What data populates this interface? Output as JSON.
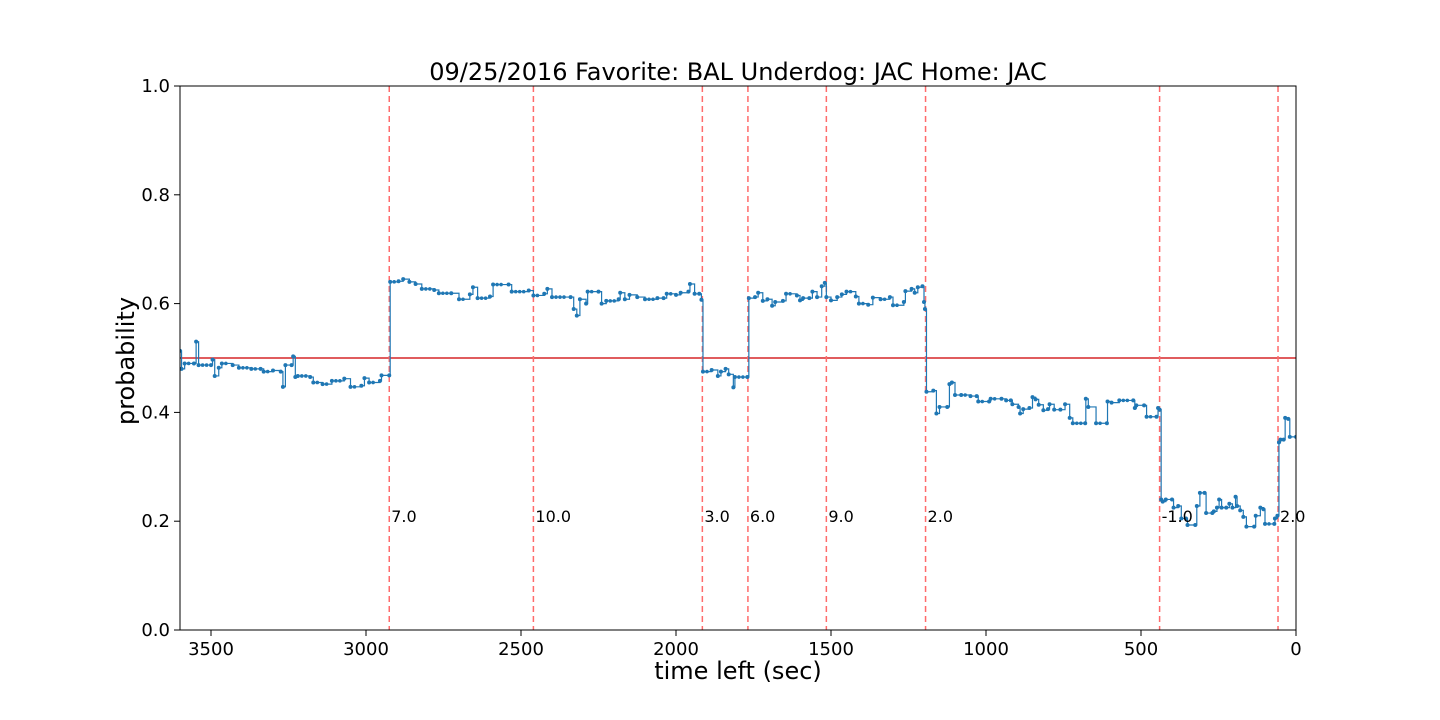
{
  "chart_data": {
    "type": "line",
    "title": "09/25/2016 Favorite: BAL Underdog: JAC Home: JAC",
    "xlabel": "time left (sec)",
    "ylabel": "probability",
    "xlim": [
      3600,
      0
    ],
    "ylim": [
      0.0,
      1.0
    ],
    "x_ticks": [
      3500,
      3000,
      2500,
      2000,
      1500,
      1000,
      500,
      0
    ],
    "y_ticks": [
      0.0,
      0.2,
      0.4,
      0.6,
      0.8,
      1.0
    ],
    "grid": false,
    "reference_line": {
      "y": 0.5,
      "color": "#d62728"
    },
    "series": [
      {
        "color": "#1f77b4",
        "points": [
          [
            3600,
            0.513
          ],
          [
            3595,
            0.48
          ],
          [
            3585,
            0.49
          ],
          [
            3555,
            0.49
          ],
          [
            3548,
            0.53
          ],
          [
            3540,
            0.487
          ],
          [
            3500,
            0.487
          ],
          [
            3495,
            0.497
          ],
          [
            3488,
            0.467
          ],
          [
            3475,
            0.482
          ],
          [
            3465,
            0.49
          ],
          [
            3430,
            0.487
          ],
          [
            3410,
            0.482
          ],
          [
            3370,
            0.48
          ],
          [
            3340,
            0.48
          ],
          [
            3330,
            0.475
          ],
          [
            3300,
            0.477
          ],
          [
            3275,
            0.475
          ],
          [
            3268,
            0.447
          ],
          [
            3260,
            0.487
          ],
          [
            3240,
            0.487
          ],
          [
            3235,
            0.503
          ],
          [
            3228,
            0.465
          ],
          [
            3220,
            0.467
          ],
          [
            3180,
            0.465
          ],
          [
            3170,
            0.455
          ],
          [
            3140,
            0.452
          ],
          [
            3110,
            0.458
          ],
          [
            3070,
            0.462
          ],
          [
            3050,
            0.447
          ],
          [
            3015,
            0.449
          ],
          [
            3005,
            0.463
          ],
          [
            2990,
            0.455
          ],
          [
            2955,
            0.458
          ],
          [
            2950,
            0.468
          ],
          [
            2925,
            0.468
          ],
          [
            2922,
            0.64
          ],
          [
            2895,
            0.641
          ],
          [
            2880,
            0.645
          ],
          [
            2860,
            0.64
          ],
          [
            2840,
            0.636
          ],
          [
            2820,
            0.627
          ],
          [
            2780,
            0.625
          ],
          [
            2765,
            0.619
          ],
          [
            2725,
            0.619
          ],
          [
            2700,
            0.608
          ],
          [
            2665,
            0.617
          ],
          [
            2655,
            0.63
          ],
          [
            2640,
            0.61
          ],
          [
            2600,
            0.613
          ],
          [
            2590,
            0.635
          ],
          [
            2540,
            0.635
          ],
          [
            2530,
            0.622
          ],
          [
            2475,
            0.624
          ],
          [
            2460,
            0.615
          ],
          [
            2425,
            0.618
          ],
          [
            2415,
            0.627
          ],
          [
            2400,
            0.612
          ],
          [
            2340,
            0.612
          ],
          [
            2330,
            0.59
          ],
          [
            2320,
            0.578
          ],
          [
            2310,
            0.608
          ],
          [
            2290,
            0.6
          ],
          [
            2285,
            0.622
          ],
          [
            2250,
            0.622
          ],
          [
            2240,
            0.6
          ],
          [
            2225,
            0.605
          ],
          [
            2185,
            0.608
          ],
          [
            2180,
            0.62
          ],
          [
            2165,
            0.608
          ],
          [
            2150,
            0.616
          ],
          [
            2125,
            0.612
          ],
          [
            2100,
            0.608
          ],
          [
            2060,
            0.61
          ],
          [
            2040,
            0.61
          ],
          [
            2030,
            0.618
          ],
          [
            2000,
            0.616
          ],
          [
            1985,
            0.62
          ],
          [
            1960,
            0.622
          ],
          [
            1955,
            0.636
          ],
          [
            1940,
            0.618
          ],
          [
            1925,
            0.618
          ],
          [
            1918,
            0.607
          ],
          [
            1913,
            0.475
          ],
          [
            1885,
            0.478
          ],
          [
            1865,
            0.467
          ],
          [
            1855,
            0.475
          ],
          [
            1840,
            0.48
          ],
          [
            1830,
            0.47
          ],
          [
            1815,
            0.446
          ],
          [
            1810,
            0.465
          ],
          [
            1770,
            0.465
          ],
          [
            1765,
            0.61
          ],
          [
            1745,
            0.612
          ],
          [
            1735,
            0.62
          ],
          [
            1720,
            0.605
          ],
          [
            1705,
            0.608
          ],
          [
            1690,
            0.596
          ],
          [
            1680,
            0.603
          ],
          [
            1655,
            0.605
          ],
          [
            1645,
            0.618
          ],
          [
            1610,
            0.615
          ],
          [
            1600,
            0.606
          ],
          [
            1590,
            0.61
          ],
          [
            1570,
            0.61
          ],
          [
            1560,
            0.622
          ],
          [
            1545,
            0.612
          ],
          [
            1530,
            0.632
          ],
          [
            1520,
            0.638
          ],
          [
            1515,
            0.612
          ],
          [
            1500,
            0.606
          ],
          [
            1480,
            0.612
          ],
          [
            1465,
            0.617
          ],
          [
            1450,
            0.622
          ],
          [
            1420,
            0.613
          ],
          [
            1410,
            0.6
          ],
          [
            1380,
            0.598
          ],
          [
            1365,
            0.611
          ],
          [
            1340,
            0.608
          ],
          [
            1310,
            0.612
          ],
          [
            1300,
            0.597
          ],
          [
            1265,
            0.603
          ],
          [
            1260,
            0.623
          ],
          [
            1240,
            0.627
          ],
          [
            1230,
            0.62
          ],
          [
            1220,
            0.63
          ],
          [
            1205,
            0.632
          ],
          [
            1200,
            0.603
          ],
          [
            1197,
            0.59
          ],
          [
            1192,
            0.438
          ],
          [
            1170,
            0.44
          ],
          [
            1160,
            0.398
          ],
          [
            1150,
            0.41
          ],
          [
            1125,
            0.41
          ],
          [
            1118,
            0.452
          ],
          [
            1110,
            0.455
          ],
          [
            1100,
            0.432
          ],
          [
            1080,
            0.432
          ],
          [
            1050,
            0.43
          ],
          [
            1030,
            0.43
          ],
          [
            1025,
            0.42
          ],
          [
            990,
            0.42
          ],
          [
            985,
            0.425
          ],
          [
            950,
            0.425
          ],
          [
            935,
            0.422
          ],
          [
            920,
            0.422
          ],
          [
            915,
            0.415
          ],
          [
            895,
            0.41
          ],
          [
            890,
            0.398
          ],
          [
            880,
            0.406
          ],
          [
            860,
            0.408
          ],
          [
            850,
            0.428
          ],
          [
            840,
            0.424
          ],
          [
            830,
            0.414
          ],
          [
            815,
            0.404
          ],
          [
            800,
            0.406
          ],
          [
            795,
            0.415
          ],
          [
            780,
            0.405
          ],
          [
            760,
            0.405
          ],
          [
            745,
            0.415
          ],
          [
            730,
            0.39
          ],
          [
            720,
            0.38
          ],
          [
            680,
            0.38
          ],
          [
            678,
            0.425
          ],
          [
            670,
            0.41
          ],
          [
            645,
            0.38
          ],
          [
            610,
            0.38
          ],
          [
            608,
            0.42
          ],
          [
            595,
            0.418
          ],
          [
            570,
            0.422
          ],
          [
            525,
            0.422
          ],
          [
            520,
            0.408
          ],
          [
            515,
            0.413
          ],
          [
            490,
            0.413
          ],
          [
            482,
            0.392
          ],
          [
            450,
            0.392
          ],
          [
            445,
            0.408
          ],
          [
            440,
            0.405
          ],
          [
            435,
            0.24
          ],
          [
            430,
            0.236
          ],
          [
            420,
            0.24
          ],
          [
            400,
            0.24
          ],
          [
            395,
            0.225
          ],
          [
            380,
            0.228
          ],
          [
            370,
            0.205
          ],
          [
            355,
            0.205
          ],
          [
            350,
            0.193
          ],
          [
            325,
            0.193
          ],
          [
            320,
            0.228
          ],
          [
            310,
            0.252
          ],
          [
            295,
            0.252
          ],
          [
            290,
            0.215
          ],
          [
            270,
            0.215
          ],
          [
            265,
            0.218
          ],
          [
            255,
            0.225
          ],
          [
            248,
            0.24
          ],
          [
            240,
            0.225
          ],
          [
            225,
            0.225
          ],
          [
            215,
            0.232
          ],
          [
            205,
            0.225
          ],
          [
            195,
            0.245
          ],
          [
            190,
            0.228
          ],
          [
            180,
            0.22
          ],
          [
            170,
            0.208
          ],
          [
            160,
            0.19
          ],
          [
            135,
            0.19
          ],
          [
            130,
            0.21
          ],
          [
            115,
            0.225
          ],
          [
            105,
            0.222
          ],
          [
            100,
            0.195
          ],
          [
            70,
            0.195
          ],
          [
            68,
            0.205
          ],
          [
            60,
            0.21
          ],
          [
            55,
            0.345
          ],
          [
            50,
            0.35
          ],
          [
            40,
            0.35
          ],
          [
            35,
            0.39
          ],
          [
            25,
            0.388
          ],
          [
            20,
            0.355
          ],
          [
            0,
            0.355
          ]
        ]
      }
    ],
    "events": [
      {
        "x": 2925,
        "label": "7.0"
      },
      {
        "x": 2460,
        "label": "10.0"
      },
      {
        "x": 1915,
        "label": "3.0"
      },
      {
        "x": 1768,
        "label": "6.0"
      },
      {
        "x": 1515,
        "label": "9.0"
      },
      {
        "x": 1195,
        "label": "2.0"
      },
      {
        "x": 440,
        "label": "-1.0"
      },
      {
        "x": 58,
        "label": "2.0"
      }
    ],
    "event_label_y": 0.2,
    "event_line_color": "#ff6b6b"
  }
}
